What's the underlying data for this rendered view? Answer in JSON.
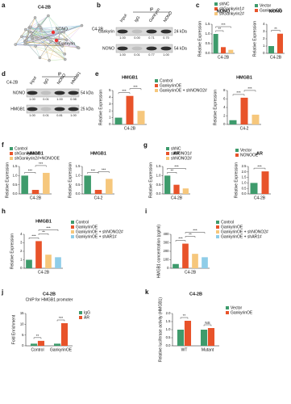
{
  "panel_labels": [
    "a",
    "b",
    "c",
    "d",
    "e",
    "f",
    "g",
    "h",
    "i",
    "j",
    "k"
  ],
  "network": {
    "title": "C4-2B",
    "nodes": [
      "Gankyrin",
      "NONO"
    ]
  },
  "blots": [
    {
      "title": "C4-2B",
      "ip": "IP",
      "lanes": [
        "Input",
        "IgG",
        "Gankyrin",
        "NONO"
      ],
      "rows": [
        {
          "name": "Gankyrin",
          "size": "24 kDa",
          "quant": [
            "1.00",
            "0.00",
            "0.71",
            "0.70"
          ]
        },
        {
          "name": "NONO",
          "size": "54 kDa",
          "quant": [
            "1.00",
            "0.01",
            "0.77",
            "1.00"
          ]
        }
      ]
    },
    {
      "title": "C4-2B",
      "ip": "IP",
      "lanes": [
        "input",
        "IgG",
        "NONO",
        "HMGB1"
      ],
      "rows": [
        {
          "name": "NONO",
          "size": "54 kDa",
          "quant": [
            "1.00",
            "0.01",
            "1.00",
            "0.98"
          ]
        },
        {
          "name": "HMGB1",
          "size": "25 kDa",
          "quant": [
            "1.00",
            "0.01",
            "0.81",
            "1.00"
          ]
        }
      ]
    }
  ],
  "chart_data": [
    {
      "type": "bar",
      "categories": [
        "shNC",
        "shGankyrin1#",
        "shGankyrin2#"
      ],
      "colors": [
        "#3e9b6c",
        "#e8532a",
        "#f6c77c"
      ],
      "ylabel": "Relative Expression",
      "panels": [
        {
          "title": "NONO",
          "xlabel": "C4-2B",
          "values": [
            1.0,
            0.32,
            0.18
          ],
          "ylim": [
            0,
            1.5
          ],
          "yticks": [
            {
              "value": 0,
              "label": "0.0"
            },
            0.5,
            {
              "value": 1,
              "label": "1.0"
            },
            1.5
          ],
          "comparisons": [
            {
              "bars": [
                0,
                1
              ],
              "label": "**"
            },
            {
              "bars": [
                0,
                2
              ],
              "label": "***"
            }
          ]
        }
      ]
    },
    {
      "type": "bar",
      "categories": [
        "Vector",
        "GankyrinOE"
      ],
      "colors": [
        "#3e9b6c",
        "#e8532a"
      ],
      "ylabel": "Relative Expression",
      "panels": [
        {
          "title": "NONO",
          "xlabel": "C4-2B",
          "values": [
            1.0,
            2.7
          ],
          "ylim": [
            0,
            4
          ],
          "yticks": [
            0,
            1,
            2,
            3,
            4
          ],
          "comparisons": [
            {
              "bars": [
                0,
                1
              ],
              "label": "**"
            }
          ]
        }
      ]
    },
    {
      "type": "bar",
      "categories": [
        "Control",
        "GankyrinOE",
        "GankyrinOE + shNONO2#"
      ],
      "colors": [
        "#3e9b6c",
        "#e8532a",
        "#f6c77c"
      ],
      "ylabel": "Relative Expression",
      "panels": [
        {
          "title": "HMGB1",
          "xlabel": "C4-2B",
          "values": [
            1.0,
            4.2,
            2.0
          ],
          "ylim": [
            0,
            5
          ],
          "yticks": [
            0,
            1,
            2,
            3,
            4,
            5
          ],
          "comparisons": [
            {
              "bars": [
                0,
                1
              ],
              "label": "***"
            },
            {
              "bars": [
                1,
                2
              ],
              "label": "***"
            }
          ]
        },
        {
          "title": "HMGB1",
          "xlabel": "C4-2",
          "values": [
            1.0,
            6.3,
            2.3
          ],
          "ylim": [
            0,
            8
          ],
          "yticks": [
            0,
            2,
            4,
            6,
            8
          ],
          "comparisons": [
            {
              "bars": [
                0,
                1
              ],
              "label": "***"
            },
            {
              "bars": [
                1,
                2
              ],
              "label": "***"
            }
          ]
        }
      ]
    },
    {
      "type": "bar",
      "categories": [
        "Control",
        "shGankyrin2#",
        "shGankyrin2#+NONOOE"
      ],
      "colors": [
        "#3e9b6c",
        "#e8532a",
        "#f6c77c"
      ],
      "ylabel": "Relative Expression",
      "panels": [
        {
          "title": "HMGB1",
          "xlabel": "C4-2B",
          "values": [
            1.0,
            0.22,
            1.15
          ],
          "ylim": [
            0,
            1.5
          ],
          "yticks": [
            {
              "value": 0,
              "label": "0.0"
            },
            0.5,
            {
              "value": 1,
              "label": "1.0"
            },
            1.5
          ],
          "comparisons": [
            {
              "bars": [
                0,
                1
              ],
              "label": "***"
            },
            {
              "bars": [
                1,
                2
              ],
              "label": "***"
            }
          ]
        },
        {
          "title": "HMGB1",
          "xlabel": "C4-2",
          "values": [
            1.0,
            0.22,
            0.82
          ],
          "ylim": [
            0,
            1.5
          ],
          "yticks": [
            {
              "value": 0,
              "label": "0.0"
            },
            0.5,
            {
              "value": 1,
              "label": "1.0"
            },
            1.5
          ],
          "comparisons": [
            {
              "bars": [
                0,
                1
              ],
              "label": "***"
            },
            {
              "bars": [
                1,
                2
              ],
              "label": "***"
            }
          ]
        }
      ]
    },
    {
      "type": "bar",
      "categories": [
        "shNC",
        "shNONO1#",
        "shNONO2#"
      ],
      "colors": [
        "#3e9b6c",
        "#e8532a",
        "#f6c77c"
      ],
      "ylabel": "Relative Expression",
      "panels": [
        {
          "title": "AR",
          "xlabel": "C4-2B",
          "values": [
            1.0,
            0.5,
            0.3
          ],
          "ylim": [
            0,
            1.5
          ],
          "yticks": [
            {
              "value": 0,
              "label": "0.0"
            },
            0.5,
            {
              "value": 1,
              "label": "1.0"
            },
            1.5
          ],
          "comparisons": [
            {
              "bars": [
                0,
                1
              ],
              "label": "**"
            },
            {
              "bars": [
                0,
                2
              ],
              "label": "***"
            }
          ]
        }
      ]
    },
    {
      "type": "bar",
      "categories": [
        "Vector",
        "NONOOE"
      ],
      "colors": [
        "#3e9b6c",
        "#e8532a"
      ],
      "ylabel": "Relative Expression",
      "panels": [
        {
          "title": "AR",
          "xlabel": "C4-2B",
          "values": [
            1.0,
            2.05
          ],
          "ylim": [
            0,
            2.5
          ],
          "yticks": [
            {
              "value": 0,
              "label": "0.0"
            },
            0.5,
            {
              "value": 1,
              "label": "1.0"
            },
            1.5,
            {
              "value": 2,
              "label": "2.0"
            },
            2.5
          ],
          "comparisons": [
            {
              "bars": [
                0,
                1
              ],
              "label": "***"
            }
          ]
        }
      ]
    },
    {
      "type": "bar",
      "categories": [
        "Control",
        "GankyrinOE",
        "GankyrinOE + shNONO2#",
        "GankyrinOE + shAR1#"
      ],
      "colors": [
        "#3e9b6c",
        "#e8532a",
        "#f6c77c",
        "#8fcde8"
      ],
      "ylabel": "Relative Expression",
      "panels": [
        {
          "title": "HMGB1",
          "xlabel": "C4-2B",
          "values": [
            1.0,
            3.2,
            1.6,
            1.3
          ],
          "ylim": [
            0,
            4
          ],
          "yticks": [
            0,
            1,
            2,
            3,
            4
          ],
          "comparisons": [
            {
              "bars": [
                0,
                1
              ],
              "label": "***"
            },
            {
              "bars": [
                1,
                2
              ],
              "label": "**"
            },
            {
              "bars": [
                1,
                3
              ],
              "label": "***"
            }
          ]
        }
      ]
    },
    {
      "type": "bar",
      "categories": [
        "Control",
        "GankyrinOE",
        "GankyrinOE + shNONO2#",
        "GankyrinOE + shAR1#"
      ],
      "colors": [
        "#3e9b6c",
        "#e8532a",
        "#f6c77c",
        "#8fcde8"
      ],
      "ylabel": "HMGB1 concentration (pg/ml)",
      "panels": [
        {
          "xlabel": "C4-2B",
          "values": [
            50,
            290,
            170,
            130
          ],
          "ylim": [
            0,
            400
          ],
          "yticks": [
            0,
            100,
            200,
            300,
            400
          ],
          "comparisons": [
            {
              "bars": [
                0,
                1
              ],
              "label": "***"
            },
            {
              "bars": [
                1,
                2
              ],
              "label": "**"
            },
            {
              "bars": [
                1,
                3
              ],
              "label": "***"
            }
          ]
        }
      ]
    },
    {
      "type": "grouped_bar",
      "title": "C4-2B",
      "subtitle": "ChIP for HMGB1 promoter",
      "categories": [
        "Control",
        "GankyrinOE"
      ],
      "series": [
        {
          "name": "IgG",
          "color": "#3e9b6c",
          "values": [
            1.0,
            1.0
          ]
        },
        {
          "name": "AR",
          "color": "#e8532a",
          "values": [
            2.3,
            10.5
          ]
        }
      ],
      "ylabel": "Fold Enrichment",
      "ylim": [
        0,
        15
      ],
      "yticks": [
        0,
        5,
        10,
        15
      ],
      "comparisons": [
        {
          "group": 0,
          "label": "**"
        },
        {
          "group": 1,
          "label": "***"
        }
      ]
    },
    {
      "type": "grouped_bar",
      "title": "C4-2B",
      "categories": [
        "WT",
        "Mutant"
      ],
      "series": [
        {
          "name": "Vector",
          "color": "#3e9b6c",
          "values": [
            1.0,
            1.0
          ]
        },
        {
          "name": "GankyrinOE",
          "color": "#e8532a",
          "values": [
            1.55,
            1.1
          ]
        }
      ],
      "ylabel": "Relative luciferase activity (HMGB1)",
      "ylim": [
        0,
        2
      ],
      "yticks": [
        {
          "value": 0,
          "label": "0.0"
        },
        0.5,
        {
          "value": 1,
          "label": "1.0"
        },
        1.5,
        {
          "value": 2,
          "label": "2.0"
        }
      ],
      "comparisons": [
        {
          "group": 0,
          "label": "**"
        },
        {
          "group": 1,
          "label": "NS"
        }
      ]
    }
  ]
}
